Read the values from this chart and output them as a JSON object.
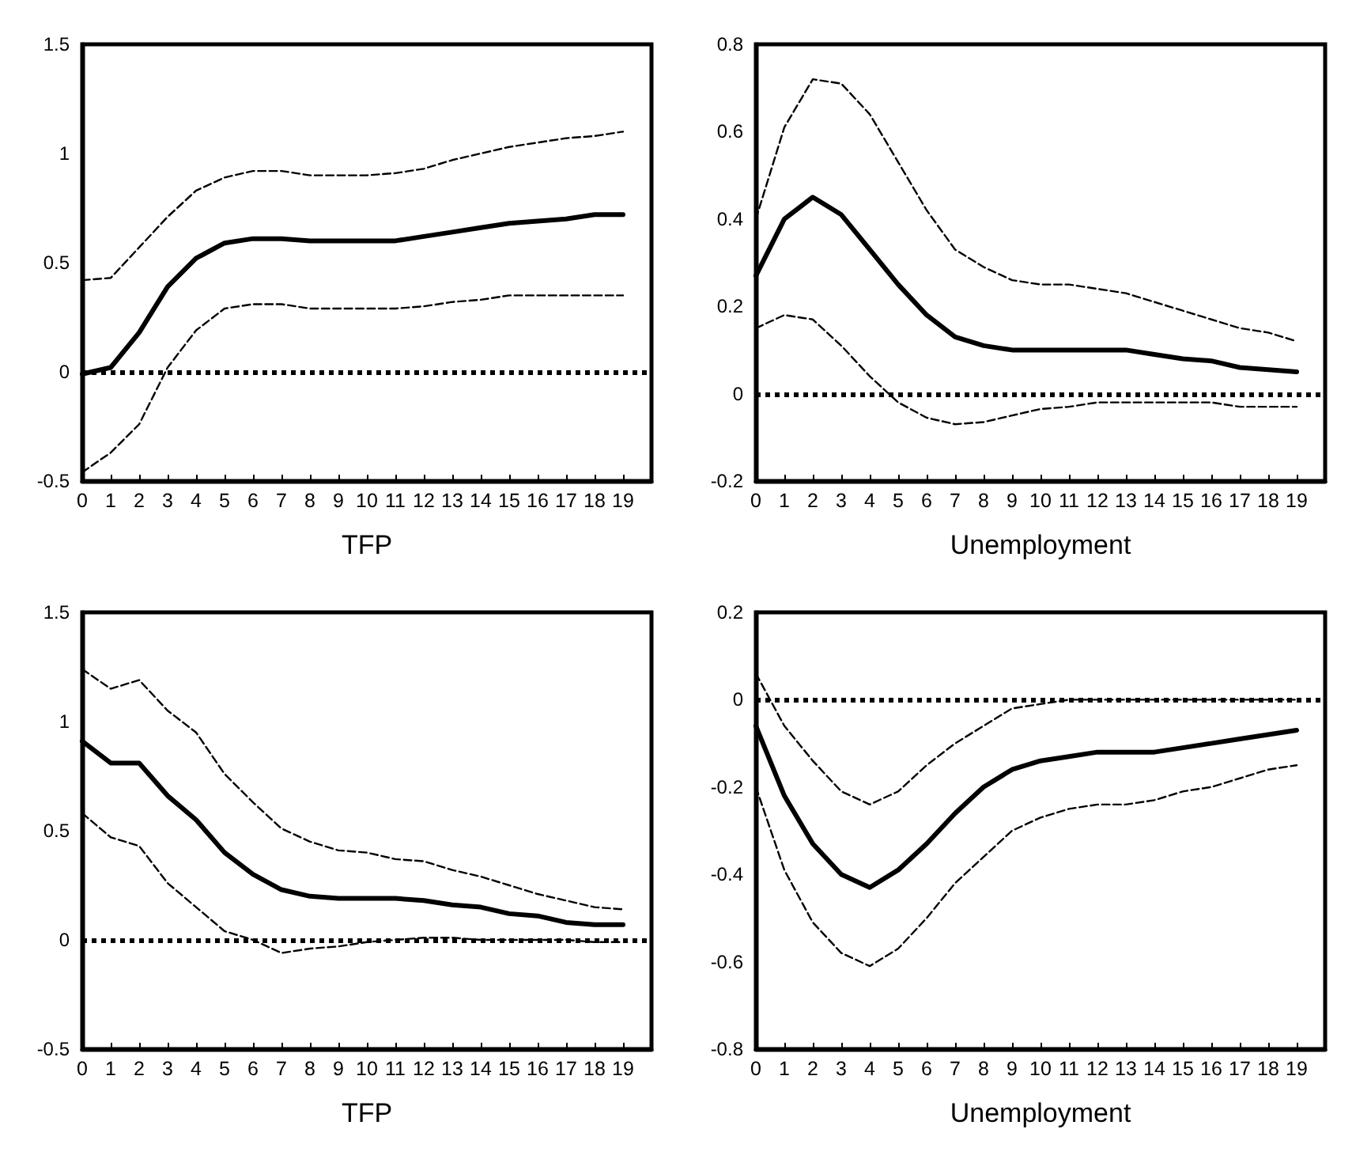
{
  "chart_data": [
    {
      "type": "line",
      "xlabel": "TFP",
      "x": [
        0,
        1,
        2,
        3,
        4,
        5,
        6,
        7,
        8,
        9,
        10,
        11,
        12,
        13,
        14,
        15,
        16,
        17,
        18,
        19
      ],
      "xlim": [
        0,
        20
      ],
      "xticks": [
        0,
        1,
        2,
        3,
        4,
        5,
        6,
        7,
        8,
        9,
        10,
        11,
        12,
        13,
        14,
        15,
        16,
        17,
        18,
        19
      ],
      "ylim": [
        -0.5,
        1.5
      ],
      "yticks": [
        -0.5,
        0,
        0.5,
        1,
        1.5
      ],
      "ref_lines": [
        {
          "axis": "y",
          "value": 0,
          "line_style": "dotted",
          "color": "#000000"
        }
      ],
      "series": [
        {
          "color": "#000000",
          "line_style": "solid",
          "values": [
            -0.01,
            0.02,
            0.18,
            0.39,
            0.52,
            0.59,
            0.61,
            0.61,
            0.6,
            0.6,
            0.6,
            0.6,
            0.62,
            0.64,
            0.66,
            0.68,
            0.69,
            0.7,
            0.72,
            0.72
          ]
        },
        {
          "color": "#000000",
          "line_style": "dashed",
          "values": [
            0.42,
            0.43,
            0.57,
            0.71,
            0.83,
            0.89,
            0.92,
            0.92,
            0.9,
            0.9,
            0.9,
            0.91,
            0.93,
            0.97,
            1.0,
            1.03,
            1.05,
            1.07,
            1.08,
            1.1
          ]
        },
        {
          "color": "#000000",
          "line_style": "dashed",
          "values": [
            -0.46,
            -0.37,
            -0.24,
            0.02,
            0.19,
            0.29,
            0.31,
            0.31,
            0.29,
            0.29,
            0.29,
            0.29,
            0.3,
            0.32,
            0.33,
            0.35,
            0.35,
            0.35,
            0.35,
            0.35
          ]
        }
      ]
    },
    {
      "type": "line",
      "xlabel": "Unemployment",
      "x": [
        0,
        1,
        2,
        3,
        4,
        5,
        6,
        7,
        8,
        9,
        10,
        11,
        12,
        13,
        14,
        15,
        16,
        17,
        18,
        19
      ],
      "xlim": [
        0,
        20
      ],
      "xticks": [
        0,
        1,
        2,
        3,
        4,
        5,
        6,
        7,
        8,
        9,
        10,
        11,
        12,
        13,
        14,
        15,
        16,
        17,
        18,
        19
      ],
      "ylim": [
        -0.2,
        0.8
      ],
      "yticks": [
        -0.2,
        0,
        0.2,
        0.4,
        0.6,
        0.8
      ],
      "ref_lines": [
        {
          "axis": "y",
          "value": 0,
          "line_style": "dotted",
          "color": "#000000"
        }
      ],
      "series": [
        {
          "color": "#000000",
          "line_style": "solid",
          "values": [
            0.27,
            0.4,
            0.45,
            0.41,
            0.33,
            0.25,
            0.18,
            0.13,
            0.11,
            0.1,
            0.1,
            0.1,
            0.1,
            0.1,
            0.09,
            0.08,
            0.075,
            0.06,
            0.055,
            0.05
          ]
        },
        {
          "color": "#000000",
          "line_style": "dashed",
          "values": [
            0.4,
            0.61,
            0.72,
            0.71,
            0.64,
            0.53,
            0.42,
            0.33,
            0.29,
            0.26,
            0.25,
            0.25,
            0.24,
            0.23,
            0.21,
            0.19,
            0.17,
            0.15,
            0.14,
            0.12
          ]
        },
        {
          "color": "#000000",
          "line_style": "dashed",
          "values": [
            0.15,
            0.18,
            0.17,
            0.11,
            0.04,
            -0.02,
            -0.055,
            -0.07,
            -0.065,
            -0.05,
            -0.035,
            -0.03,
            -0.02,
            -0.02,
            -0.02,
            -0.02,
            -0.02,
            -0.03,
            -0.03,
            -0.03
          ]
        }
      ]
    },
    {
      "type": "line",
      "xlabel": "TFP",
      "x": [
        0,
        1,
        2,
        3,
        4,
        5,
        6,
        7,
        8,
        9,
        10,
        11,
        12,
        13,
        14,
        15,
        16,
        17,
        18,
        19
      ],
      "xlim": [
        0,
        20
      ],
      "xticks": [
        0,
        1,
        2,
        3,
        4,
        5,
        6,
        7,
        8,
        9,
        10,
        11,
        12,
        13,
        14,
        15,
        16,
        17,
        18,
        19
      ],
      "ylim": [
        -0.5,
        1.5
      ],
      "yticks": [
        -0.5,
        0,
        0.5,
        1,
        1.5
      ],
      "ref_lines": [
        {
          "axis": "y",
          "value": 0,
          "line_style": "dotted",
          "color": "#000000"
        }
      ],
      "series": [
        {
          "color": "#000000",
          "line_style": "solid",
          "values": [
            0.91,
            0.81,
            0.81,
            0.66,
            0.55,
            0.4,
            0.3,
            0.23,
            0.2,
            0.19,
            0.19,
            0.19,
            0.18,
            0.16,
            0.15,
            0.12,
            0.11,
            0.08,
            0.07,
            0.07
          ]
        },
        {
          "color": "#000000",
          "line_style": "dashed",
          "values": [
            1.24,
            1.15,
            1.19,
            1.05,
            0.95,
            0.76,
            0.63,
            0.51,
            0.45,
            0.41,
            0.4,
            0.37,
            0.36,
            0.32,
            0.29,
            0.25,
            0.21,
            0.18,
            0.15,
            0.14
          ]
        },
        {
          "color": "#000000",
          "line_style": "dashed",
          "values": [
            0.58,
            0.47,
            0.43,
            0.26,
            0.15,
            0.04,
            0,
            -0.06,
            -0.04,
            -0.03,
            -0.01,
            0,
            0.01,
            0.01,
            0,
            0,
            0,
            0,
            -0.01,
            -0.01
          ]
        }
      ]
    },
    {
      "type": "line",
      "xlabel": "Unemployment",
      "x": [
        0,
        1,
        2,
        3,
        4,
        5,
        6,
        7,
        8,
        9,
        10,
        11,
        12,
        13,
        14,
        15,
        16,
        17,
        18,
        19
      ],
      "xlim": [
        0,
        20
      ],
      "xticks": [
        0,
        1,
        2,
        3,
        4,
        5,
        6,
        7,
        8,
        9,
        10,
        11,
        12,
        13,
        14,
        15,
        16,
        17,
        18,
        19
      ],
      "ylim": [
        -0.8,
        0.2
      ],
      "yticks": [
        -0.8,
        -0.6,
        -0.4,
        -0.2,
        0,
        0.2
      ],
      "ref_lines": [
        {
          "axis": "y",
          "value": 0,
          "line_style": "dotted",
          "color": "#000000"
        }
      ],
      "series": [
        {
          "color": "#000000",
          "line_style": "solid",
          "values": [
            -0.06,
            -0.22,
            -0.33,
            -0.4,
            -0.43,
            -0.39,
            -0.33,
            -0.26,
            -0.2,
            -0.16,
            -0.14,
            -0.13,
            -0.12,
            -0.12,
            -0.12,
            -0.11,
            -0.1,
            -0.09,
            -0.08,
            -0.07
          ]
        },
        {
          "color": "#000000",
          "line_style": "dashed",
          "values": [
            0.06,
            -0.06,
            -0.14,
            -0.21,
            -0.24,
            -0.21,
            -0.15,
            -0.1,
            -0.06,
            -0.02,
            -0.01,
            0,
            0,
            0,
            0,
            0,
            0,
            0,
            0,
            0
          ]
        },
        {
          "color": "#000000",
          "line_style": "dashed",
          "values": [
            -0.2,
            -0.39,
            -0.51,
            -0.58,
            -0.61,
            -0.57,
            -0.5,
            -0.42,
            -0.36,
            -0.3,
            -0.27,
            -0.25,
            -0.24,
            -0.24,
            -0.23,
            -0.21,
            -0.2,
            -0.18,
            -0.16,
            -0.15
          ]
        }
      ]
    }
  ]
}
